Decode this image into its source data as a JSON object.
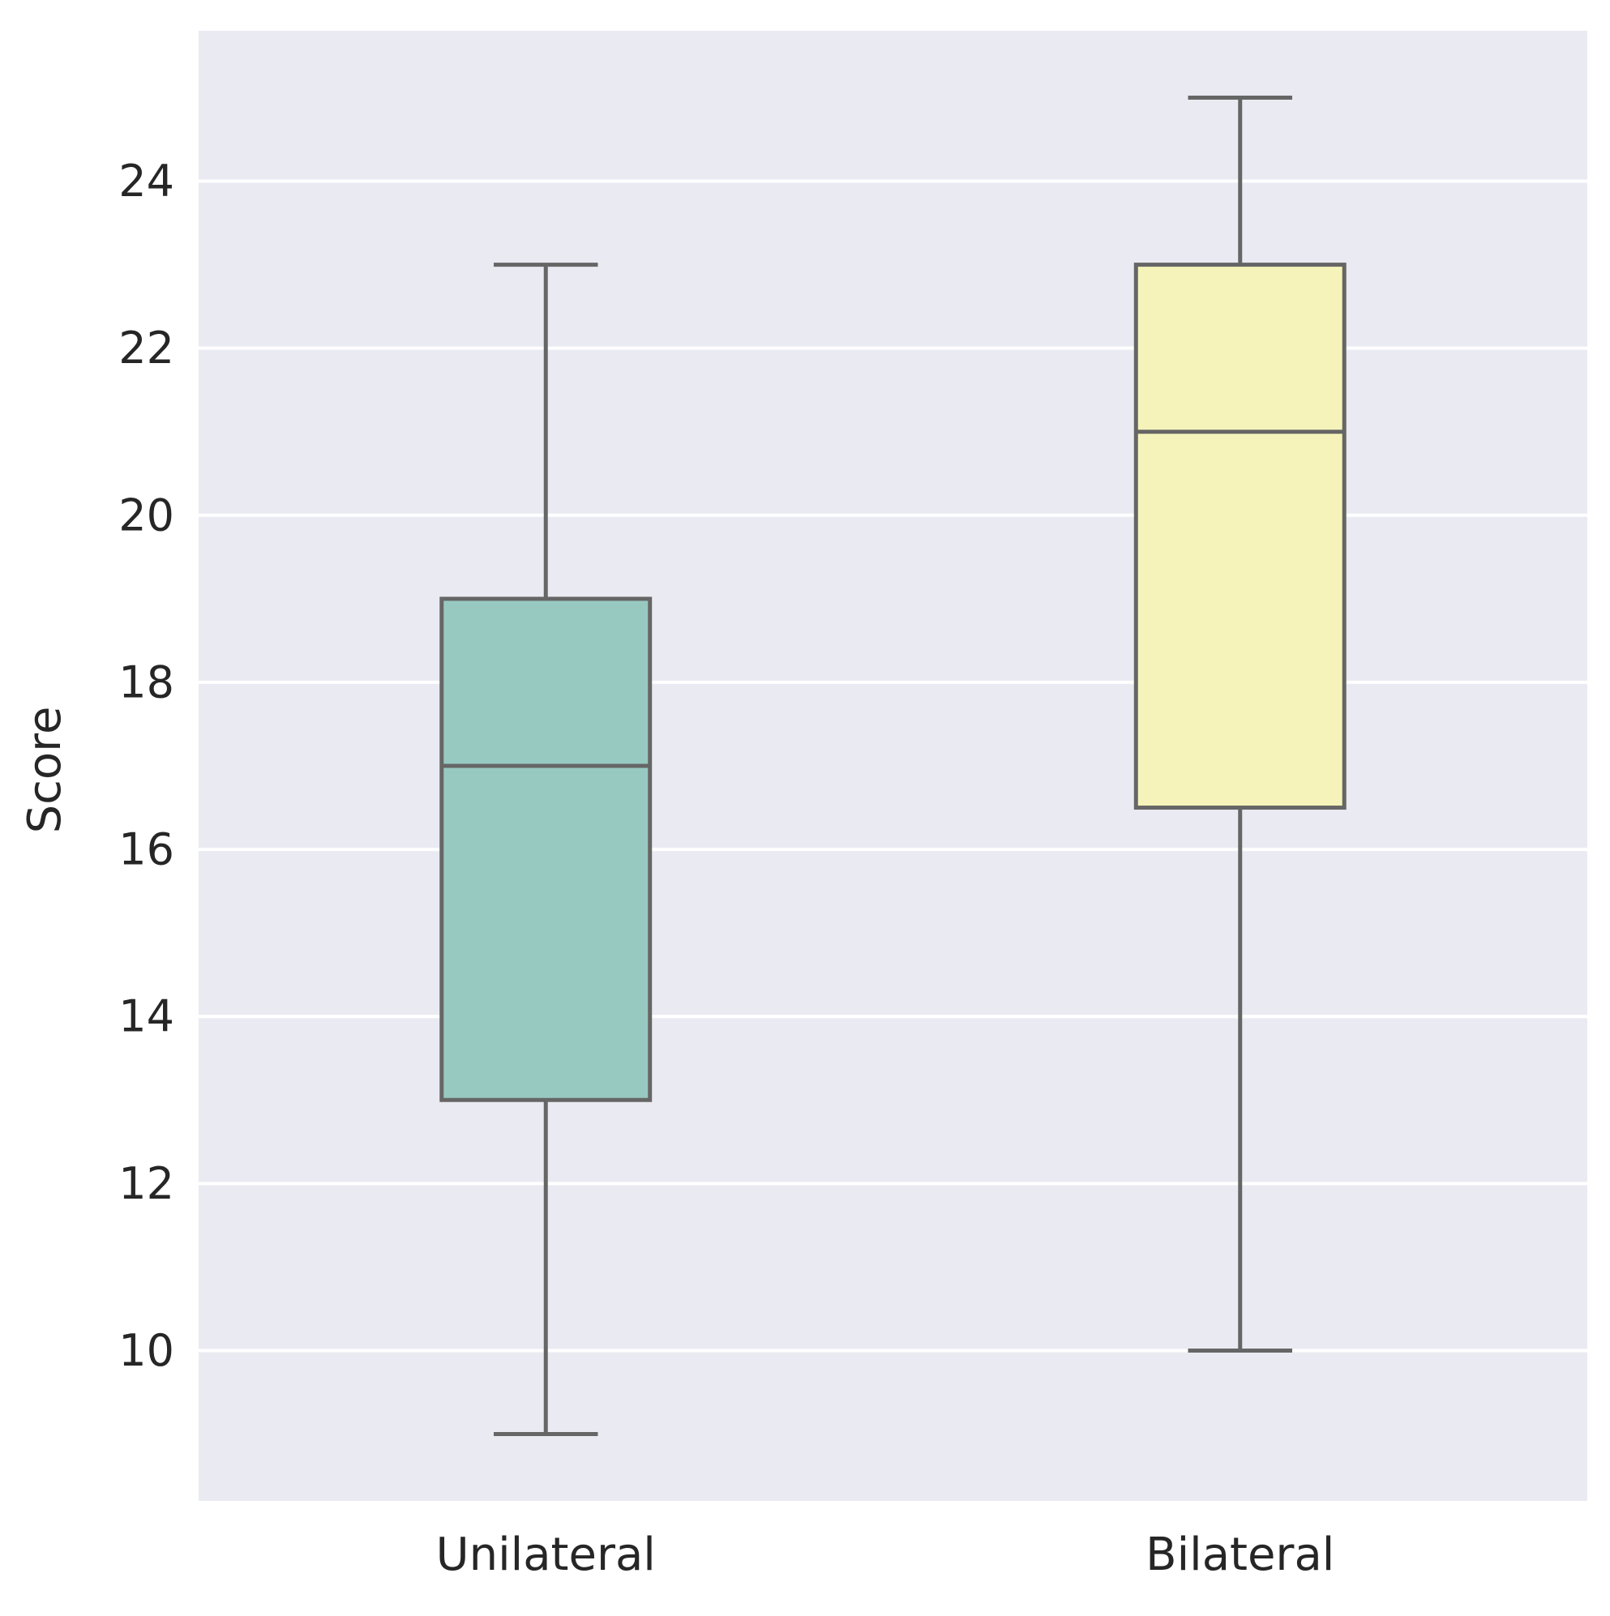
{
  "chart_data": {
    "type": "box",
    "title": "",
    "xlabel": "",
    "ylabel": "Score",
    "ylim": [
      8.2,
      25.8
    ],
    "yticks": [
      10,
      12,
      14,
      16,
      18,
      20,
      22,
      24
    ],
    "categories": [
      "Unilateral",
      "Bilateral"
    ],
    "boxes": [
      {
        "category": "Unilateral",
        "whisker_low": 9,
        "q1": 13,
        "median": 17,
        "q3": 19,
        "whisker_high": 23,
        "color": "#98c9c1"
      },
      {
        "category": "Bilateral",
        "whisker_low": 10,
        "q1": 16.5,
        "median": 21,
        "q3": 23,
        "whisker_high": 25,
        "color": "#f5f3b9"
      }
    ],
    "grid": true,
    "grid_axis": "y",
    "style": {
      "background": "#eaeaf2",
      "grid_color": "#ffffff",
      "line_color": "#666666"
    }
  }
}
